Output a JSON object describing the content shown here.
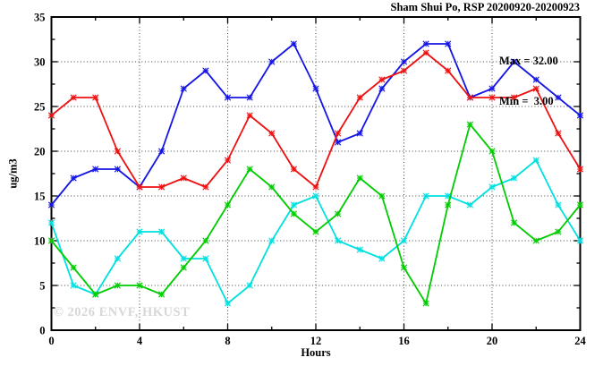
{
  "chart_data": {
    "type": "line",
    "title": "Sham Shui Po, RSP 20200920-20200923",
    "xlabel": "Hours",
    "ylabel": "ug/m3",
    "xlim": [
      0,
      24
    ],
    "ylim": [
      0,
      35
    ],
    "x_major_ticks": [
      0,
      4,
      8,
      12,
      16,
      20,
      24
    ],
    "x_minor_step": 2,
    "y_major_ticks": [
      0,
      5,
      10,
      15,
      20,
      25,
      30,
      35
    ],
    "y_minor_step": 2.5,
    "grid": "dotted-at-major-ticks",
    "legend_position": "none",
    "annotation": {
      "max_label": "Max = 32.00",
      "min_label": "Min =  3.00"
    },
    "watermark": "© 2026 ENVF, HKUST",
    "x": [
      0,
      1,
      2,
      3,
      4,
      5,
      6,
      7,
      8,
      9,
      10,
      11,
      12,
      13,
      14,
      15,
      16,
      17,
      18,
      19,
      20,
      21,
      22,
      23,
      24
    ],
    "series": [
      {
        "name": "blue-line",
        "color": "#1515e6",
        "values": [
          14,
          17,
          18,
          18,
          16,
          20,
          27,
          29,
          26,
          26,
          30,
          32,
          27,
          21,
          22,
          27,
          30,
          32,
          32,
          26,
          27,
          30,
          28,
          26,
          24
        ]
      },
      {
        "name": "red-line",
        "color": "#ee1111",
        "values": [
          24,
          26,
          26,
          20,
          16,
          16,
          17,
          16,
          19,
          24,
          22,
          18,
          16,
          22,
          26,
          28,
          29,
          31,
          29,
          26,
          26,
          26,
          27,
          22,
          18
        ]
      },
      {
        "name": "green-line",
        "color": "#00cc00",
        "values": [
          10,
          7,
          4,
          5,
          5,
          4,
          7,
          10,
          14,
          18,
          16,
          13,
          11,
          13,
          17,
          15,
          7,
          3,
          14,
          23,
          20,
          12,
          10,
          11,
          14
        ]
      },
      {
        "name": "cyan-line",
        "color": "#00e0e0",
        "values": [
          12,
          5,
          4,
          8,
          11,
          11,
          8,
          8,
          3,
          5,
          10,
          14,
          15,
          10,
          9,
          8,
          10,
          15,
          15,
          14,
          16,
          17,
          19,
          14,
          10
        ]
      }
    ]
  }
}
